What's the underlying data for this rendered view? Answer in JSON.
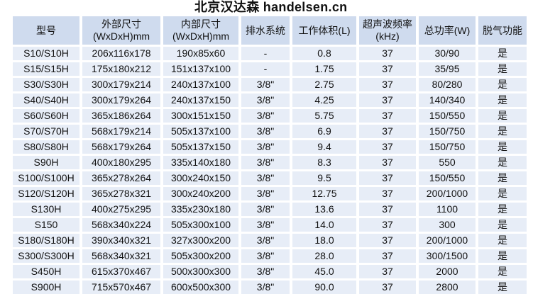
{
  "headers": [
    "型号",
    "外部尺寸\n(WxDxH)mm",
    "内部尺寸\n(WxDxH)mm",
    "排水系统",
    "工作体积(L)",
    "超声波频率\n(kHz)",
    "总功率(W)",
    "脱气功能"
  ],
  "rows": [
    [
      "S10/S10H",
      "206x116x178",
      "190x85x60",
      "-",
      "0.8",
      "37",
      "30/90",
      "是"
    ],
    [
      "S15/S15H",
      "175x180x212",
      "151x137x100",
      "-",
      "1.75",
      "37",
      "35/95",
      "是"
    ],
    [
      "S30/S30H",
      "300x179x214",
      "240x137x100",
      "3/8\"",
      "2.75",
      "37",
      "80/280",
      "是"
    ],
    [
      "S40/S40H",
      "300x179x264",
      "240x137x150",
      "3/8\"",
      "4.25",
      "37",
      "140/340",
      "是"
    ],
    [
      "S60/S60H",
      "365x186x264",
      "300x151x150",
      "3/8\"",
      "5.75",
      "37",
      "150/550",
      "是"
    ],
    [
      "S70/S70H",
      "568x179x214",
      "505x137x100",
      "3/8\"",
      "6.9",
      "37",
      "150/750",
      "是"
    ],
    [
      "S80/S80H",
      "568x179x264",
      "505x137x150",
      "3/8\"",
      "9.4",
      "37",
      "150/750",
      "是"
    ],
    [
      "S90H",
      "400x180x295",
      "335x140x180",
      "3/8\"",
      "8.3",
      "37",
      "550",
      "是"
    ],
    [
      "S100/S100H",
      "365x278x264",
      "300x240x150",
      "3/8\"",
      "9.5",
      "37",
      "150/550",
      "是"
    ],
    [
      "S120/S120H",
      "365x278x321",
      "300x240x200",
      "3/8\"",
      "12.75",
      "37",
      "200/1000",
      "是"
    ],
    [
      "S130H",
      "400x275x295",
      "335x230x180",
      "3/8\"",
      "13.6",
      "37",
      "1100",
      "是"
    ],
    [
      "S150",
      "568x340x224",
      "505x300x100",
      "3/8\"",
      "14.0",
      "37",
      "300",
      "是"
    ],
    [
      "S180/S180H",
      "390x340x321",
      "327x300x200",
      "3/8\"",
      "18.0",
      "37",
      "200/1000",
      "是"
    ],
    [
      "S300/S300H",
      "568x340x321",
      "505x300x200",
      "3/8\"",
      "28.0",
      "37",
      "300/1500",
      "是"
    ],
    [
      "S450H",
      "615x370x467",
      "500x300x300",
      "3/8\"",
      "45.0",
      "37",
      "2000",
      "是"
    ],
    [
      "S900H",
      "715x570x467",
      "600x500x300",
      "3/8\"",
      "90.0",
      "37",
      "2800",
      "是"
    ]
  ],
  "watermark": "北京汉达森 handelsen.cn",
  "colors": {
    "header_bg": "#cfdbee",
    "cell_bg": "#e7edf7"
  }
}
